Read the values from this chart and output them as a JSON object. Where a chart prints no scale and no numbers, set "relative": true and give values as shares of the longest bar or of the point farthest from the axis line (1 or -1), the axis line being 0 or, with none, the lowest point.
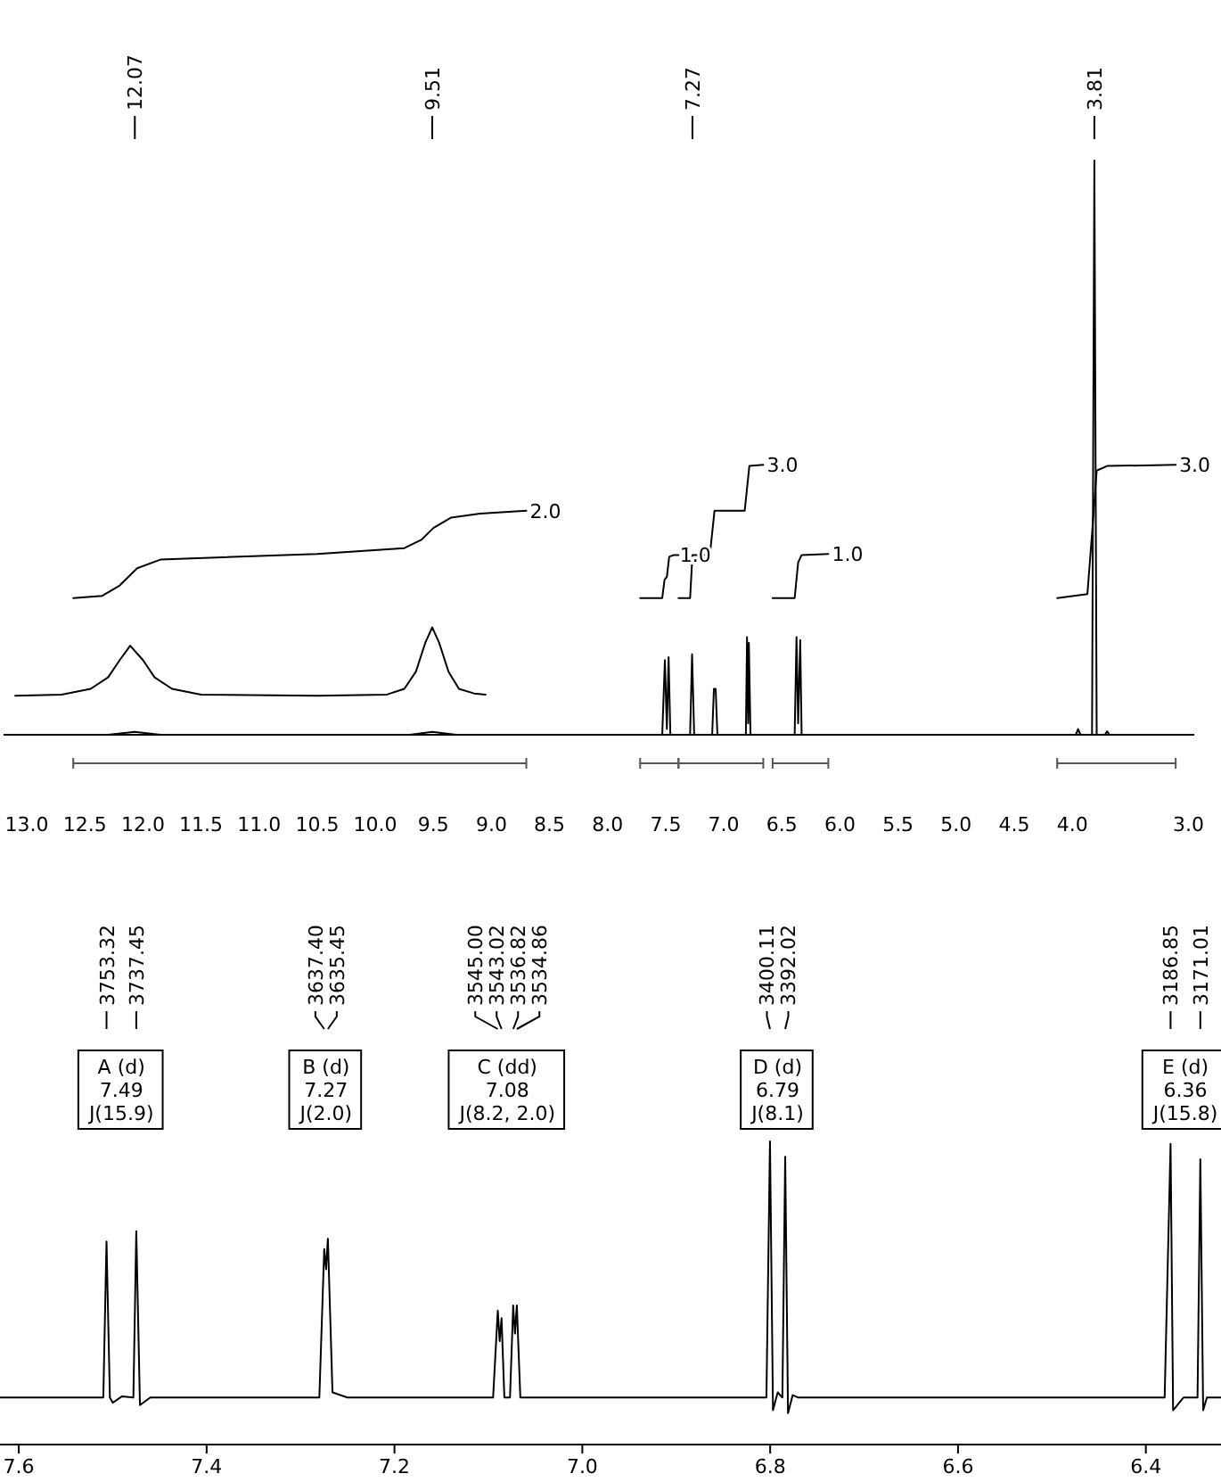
{
  "chart_data": [
    {
      "type": "line",
      "relative": true,
      "xlim": [
        13.2,
        2.95
      ],
      "xticks": [
        {
          "value": 13,
          "label": "13.0"
        },
        12.5,
        {
          "value": 12,
          "label": "12.0"
        },
        11.5,
        {
          "value": 11,
          "label": "11.0"
        },
        10.5,
        {
          "value": 10,
          "label": "10.0"
        },
        9.5,
        {
          "value": 9,
          "label": "9.0"
        },
        8.5,
        {
          "value": 8,
          "label": "8.0"
        },
        7.5,
        {
          "value": 7,
          "label": "7.0"
        },
        6.5,
        {
          "value": 6,
          "label": "6.0"
        },
        5.5,
        {
          "value": 5,
          "label": "5.0"
        },
        4.5,
        {
          "value": 4,
          "label": "4.0"
        },
        {
          "value": 3,
          "label": "3.0"
        }
      ],
      "tick_labels": "x",
      "grid": false,
      "series": [
        {
          "color": "#000000",
          "x": [
            13.15,
            12.3,
            12.07,
            11.85,
            9.7,
            9.51,
            9.3,
            7.53,
            7.507,
            7.49,
            7.475,
            7.46,
            7.29,
            7.273,
            7.255,
            7.1,
            7.085,
            7.07,
            7.055,
            6.81,
            6.8,
            6.79,
            6.784,
            6.77,
            6.39,
            6.374,
            6.36,
            6.342,
            6.33,
            3.97,
            3.95,
            3.93,
            3.83,
            3.81,
            3.79,
            3.72,
            3.7,
            3.68,
            2.97
          ],
          "values": [
            0,
            0,
            0.005,
            0,
            0,
            0.005,
            0,
            0,
            0.13,
            0.01,
            0.135,
            0,
            0,
            0.14,
            0,
            0,
            0.08,
            0.08,
            0,
            0,
            0.17,
            0.02,
            0.16,
            0,
            0,
            0.17,
            0.02,
            0.165,
            0,
            0,
            0.01,
            0,
            0,
            1,
            0,
            0,
            0.006,
            0,
            0
          ]
        },
        {
          "color": "#000000",
          "x": [
            13.1,
            12.7,
            12.45,
            12.3,
            12.2,
            12.11,
            12.0,
            11.9,
            11.75,
            11.5,
            10.5,
            9.9,
            9.75,
            9.65,
            9.57,
            9.51,
            9.45,
            9.37,
            9.28,
            9.15,
            9.05
          ],
          "values": [
            0.068,
            0.07,
            0.08,
            0.1,
            0.13,
            0.155,
            0.13,
            0.1,
            0.08,
            0.07,
            0.068,
            0.07,
            0.08,
            0.11,
            0.16,
            0.187,
            0.16,
            0.11,
            0.08,
            0.072,
            0.07
          ]
        },
        {
          "color": "#000000",
          "x": [
            12.6,
            12.35,
            12.2,
            12.05,
            11.85,
            10.5,
            9.75,
            9.6,
            9.5,
            9.35,
            9.1,
            8.7
          ],
          "values": [
            0.238,
            0.242,
            0.26,
            0.29,
            0.305,
            0.315,
            0.325,
            0.34,
            0.36,
            0.378,
            0.385,
            0.39
          ]
        },
        {
          "color": "#000000",
          "x": [
            7.72,
            7.53,
            7.51,
            7.49,
            7.47,
            7.43,
            7.39
          ],
          "values": [
            0.238,
            0.238,
            0.27,
            0.275,
            0.31,
            0.313,
            0.313
          ]
        },
        {
          "color": "#000000",
          "x": [
            7.39,
            7.29,
            7.27,
            7.12,
            7.08,
            6.82,
            6.78,
            6.66
          ],
          "values": [
            0.238,
            0.238,
            0.313,
            0.313,
            0.39,
            0.39,
            0.468,
            0.47
          ]
        },
        {
          "color": "#000000",
          "x": [
            6.58,
            6.39,
            6.36,
            6.33,
            6.1
          ],
          "values": [
            0.238,
            0.238,
            0.3,
            0.313,
            0.315
          ]
        },
        {
          "color": "#000000",
          "x": [
            4.13,
            3.87,
            3.83,
            3.79,
            3.7,
            3.11
          ],
          "values": [
            0.238,
            0.245,
            0.35,
            0.46,
            0.468,
            0.47
          ]
        }
      ],
      "annotations": [
        {
          "text": "12.07",
          "x": 12.07
        },
        {
          "text": "9.51",
          "x": 9.51
        },
        {
          "text": "7.27",
          "x": 7.27
        },
        {
          "text": "3.81",
          "x": 3.81
        },
        {
          "text": "2.0",
          "x": 8.7,
          "y": 0.39
        },
        {
          "text": "1.0",
          "x": 7.41,
          "y": 0.313
        },
        {
          "text": "3.0",
          "x": 6.66,
          "y": 0.47
        },
        {
          "text": "1.0",
          "x": 6.1,
          "y": 0.315
        },
        {
          "text": "3.0",
          "x": 3.11,
          "y": 0.47
        }
      ]
    },
    {
      "type": "line",
      "relative": true,
      "xlim": [
        7.62,
        6.32
      ],
      "xticks": [
        7.6,
        7.4,
        7.2,
        {
          "value": 7,
          "label": "7.0"
        },
        6.8,
        6.6,
        6.4
      ],
      "tick_labels": "x",
      "grid": false,
      "series": [
        {
          "color": "#000000",
          "x": [
            7.62,
            7.51,
            7.5066,
            7.503,
            7.5,
            7.49,
            7.478,
            7.4749,
            7.471,
            7.46,
            7.28,
            7.2748,
            7.2728,
            7.2709,
            7.266,
            7.25,
            7.095,
            7.09,
            7.088,
            7.086,
            7.083,
            7.077,
            7.0736,
            7.0717,
            7.0697,
            7.066,
            6.81,
            6.804,
            6.8002,
            6.797,
            6.792,
            6.787,
            6.784,
            6.781,
            6.776,
            6.77,
            6.38,
            6.3737,
            6.371,
            6.36,
            6.345,
            6.342,
            6.339,
            6.335,
            6.32
          ],
          "values": [
            0.155,
            0.155,
            0.67,
            0.155,
            0.138,
            0.159,
            0.155,
            0.704,
            0.13,
            0.155,
            0.155,
            0.645,
            0.578,
            0.679,
            0.172,
            0.155,
            0.155,
            0.442,
            0.341,
            0.417,
            0.155,
            0.155,
            0.459,
            0.366,
            0.459,
            0.155,
            0.155,
            0.155,
            1,
            0.113,
            0.172,
            0.155,
            0.949,
            0.104,
            0.163,
            0.155,
            0.155,
            0.992,
            0.113,
            0.155,
            0.155,
            0.941,
            0.113,
            0.155,
            0.155
          ]
        }
      ],
      "annotations": [
        {
          "text": "3753.32",
          "x": 7.5066
        },
        {
          "text": "3737.45",
          "x": 7.4749
        },
        {
          "text": "3637.40",
          "x": 7.2748
        },
        {
          "text": "3635.45",
          "x": 7.2709
        },
        {
          "text": "3545.00",
          "x": 7.09
        },
        {
          "text": "3543.02",
          "x": 7.086
        },
        {
          "text": "3536.82",
          "x": 7.0736
        },
        {
          "text": "3534.86",
          "x": 7.0697
        },
        {
          "text": "3400.11",
          "x": 6.8002
        },
        {
          "text": "3392.02",
          "x": 6.784
        },
        {
          "text": "3186.85",
          "x": 6.3737
        },
        {
          "text": "3171.01",
          "x": 6.342
        },
        "A (d)\n7.49\nJ(15.9)",
        "B (d)\n7.27\nJ(2.0)",
        "C (dd)\n7.08\nJ(8.2, 2.0)",
        "D (d)\n6.79\nJ(8.1)",
        "E (d)\n6.36\nJ(15.8)"
      ]
    }
  ]
}
